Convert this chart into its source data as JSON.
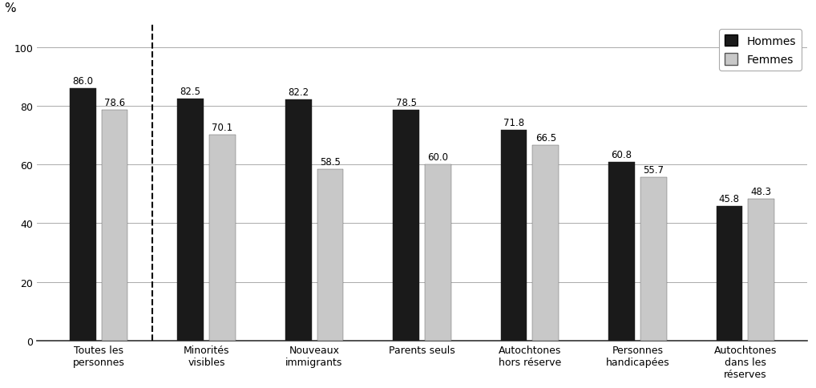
{
  "categories": [
    "Toutes les\npersonnes",
    "Minorités\nvisibles",
    "Nouveaux\nimmigrants",
    "Parents seuls",
    "Autochtones\nhors réserve",
    "Personnes\nhandicapées",
    "Autochtones\ndans les\nréserves"
  ],
  "hommes": [
    86.0,
    82.5,
    82.2,
    78.5,
    71.8,
    60.8,
    45.8
  ],
  "femmes": [
    78.6,
    70.1,
    58.5,
    60.0,
    66.5,
    55.7,
    48.3
  ],
  "hommes_color": "#1a1a1a",
  "femmes_color": "#c8c8c8",
  "bar_edge_color": "#555555",
  "ylabel": "%",
  "ylim": [
    0,
    108
  ],
  "yticks": [
    0,
    20,
    40,
    60,
    80,
    100
  ],
  "legend_hommes": "Hommes",
  "legend_femmes": "Femmes",
  "background_color": "#ffffff",
  "grid_color": "#aaaaaa",
  "label_fontsize": 8.5,
  "tick_fontsize": 9,
  "legend_fontsize": 10,
  "ylabel_fontsize": 11
}
